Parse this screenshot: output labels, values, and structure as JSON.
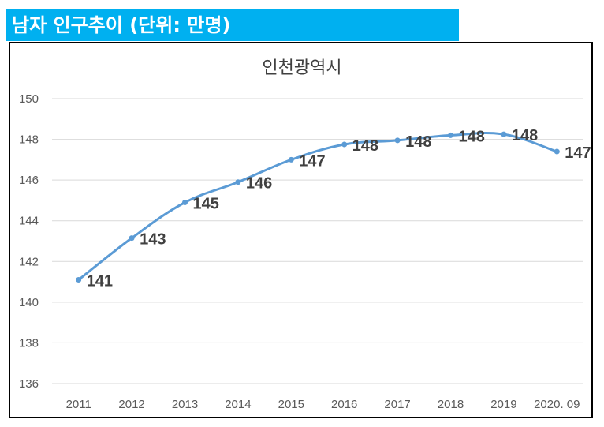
{
  "banner": {
    "title": "남자 인구추이 (단위: 만명)"
  },
  "colors": {
    "banner": "#00b0f0",
    "line": "#5b9bd5",
    "grid": "#d9d9d9",
    "text": "#404040"
  },
  "chart_data": {
    "type": "line",
    "title": "인천광역시",
    "categories": [
      "2011",
      "2012",
      "2013",
      "2014",
      "2015",
      "2016",
      "2017",
      "2018",
      "2019",
      "2020. 09"
    ],
    "series": [
      {
        "name": "남자 인구",
        "values": [
          141.1,
          143.15,
          144.9,
          145.9,
          147.0,
          147.75,
          147.95,
          148.2,
          148.25,
          147.4
        ],
        "labels": [
          "141",
          "143",
          "145",
          "146",
          "147",
          "148",
          "148",
          "148",
          "148",
          "147"
        ]
      }
    ],
    "ylim": [
      136,
      150
    ],
    "yticks": [
      136,
      138,
      140,
      142,
      144,
      146,
      148,
      150
    ],
    "xlabel": "",
    "ylabel": "",
    "grid": true
  }
}
